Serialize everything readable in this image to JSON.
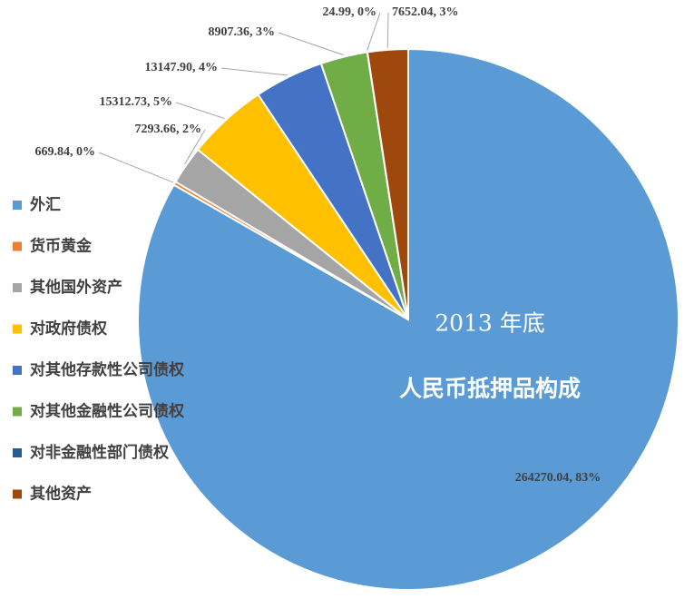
{
  "chart_data": {
    "type": "pie",
    "title": "2013 年底",
    "subtitle": "人民币抵押品构成",
    "categories": [
      "外汇",
      "货币黄金",
      "其他国外资产",
      "对政府债权",
      "对其他存款性公司债权",
      "对其他金融性公司债权",
      "对非金融性部门债权",
      "其他资产"
    ],
    "values": [
      264270.04,
      669.84,
      7293.66,
      15312.73,
      13147.9,
      8907.36,
      24.99,
      7652.04
    ],
    "value_labels": [
      "264270.04, 83%",
      "669.84, 0%",
      "7293.66, 2%",
      "15312.73, 5%",
      "13147.90, 4%",
      "8907.36, 3%",
      "24.99, 0%",
      "7652.04, 3%"
    ],
    "colors": [
      "#5b9bd5",
      "#ed7d31",
      "#a5a5a5",
      "#ffc000",
      "#4472c4",
      "#70ad47",
      "#255e91",
      "#9e480e"
    ],
    "legend": "left"
  }
}
